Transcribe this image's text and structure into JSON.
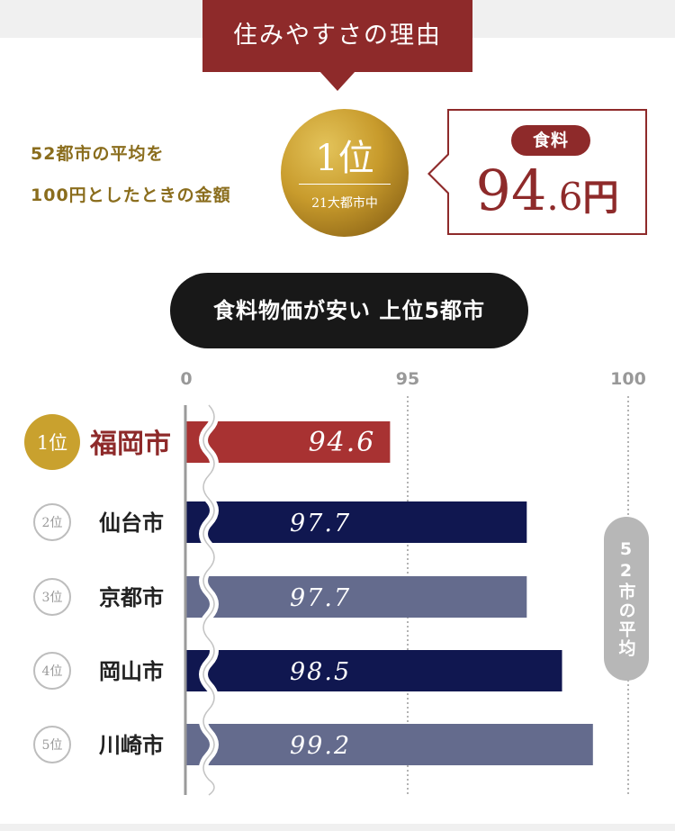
{
  "banner": {
    "title": "住みやすさの理由"
  },
  "caption": {
    "line1": "52都市の平均を",
    "line2": "100円としたときの金額"
  },
  "medal": {
    "rank": "1位",
    "sub": "21大都市中"
  },
  "callout": {
    "badge": "食料",
    "value_int": "94",
    "value_dec": ".6",
    "unit": "円"
  },
  "pill": {
    "title": "食料物価が安い 上位5都市"
  },
  "avg_label": "52市の平均",
  "colors": {
    "accent": "#8e2a2a",
    "navy": "#101750",
    "slate": "#646b8d",
    "gold": "#c9a12e",
    "gray": "#b7b7b7"
  },
  "chart_data": {
    "type": "bar",
    "orientation": "horizontal",
    "axis_ticks": [
      "0",
      "95",
      "100"
    ],
    "xlim": [
      93.6,
      100.2
    ],
    "axis_break": "between 0 and 95",
    "reference_line": {
      "value": 100,
      "label": "52市の平均"
    },
    "grid": "dotted vertical at 95 and 100",
    "categories": [
      "福岡市",
      "仙台市",
      "京都市",
      "岡山市",
      "川崎市"
    ],
    "ranks": [
      "1位",
      "2位",
      "3位",
      "4位",
      "5位"
    ],
    "values": [
      94.6,
      97.7,
      97.7,
      98.5,
      99.2
    ],
    "value_labels": [
      "94.6",
      "97.7",
      "97.7",
      "98.5",
      "99.2"
    ],
    "bar_colors": [
      "#a83232",
      "#101750",
      "#646b8d",
      "#101750",
      "#646b8d"
    ]
  }
}
